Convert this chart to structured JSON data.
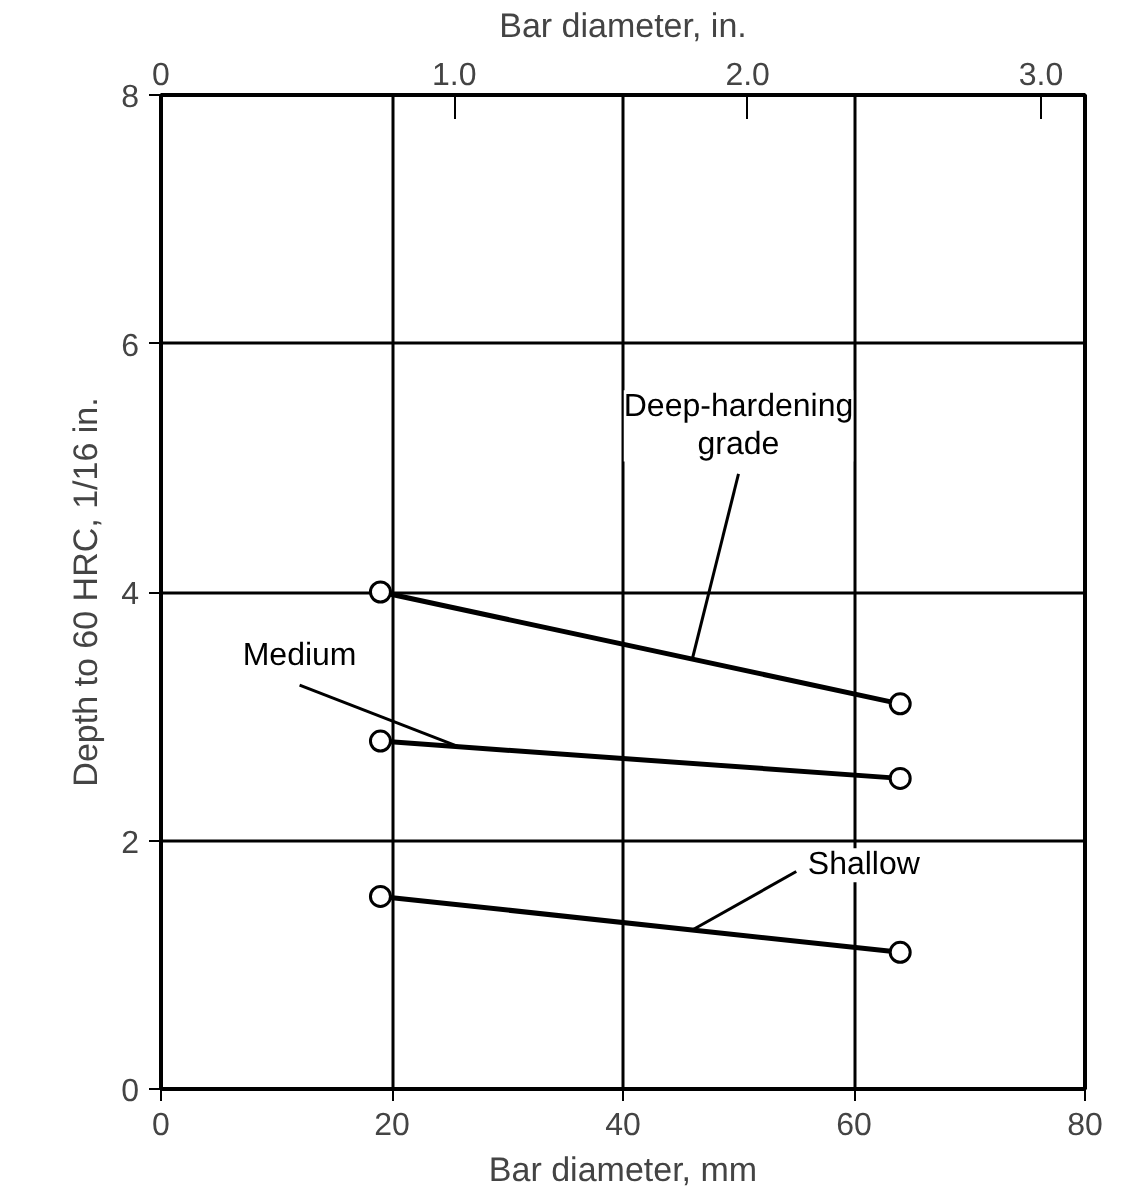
{
  "chart_data": {
    "type": "line",
    "xlabel": "Bar diameter, mm",
    "ylabel": "Depth to 60 HRC, 1/16 in.",
    "x2label": "Bar diameter, in.",
    "xlim": [
      0,
      80
    ],
    "xticks": [
      0,
      20,
      40,
      60,
      80
    ],
    "ylim": [
      0,
      8
    ],
    "yticks": [
      0,
      2,
      4,
      6,
      8
    ],
    "x2lim": [
      0,
      3.15
    ],
    "x2ticks": [
      0,
      {
        "value": 1,
        "label": "1.0"
      },
      {
        "value": 2,
        "label": "2.0"
      },
      {
        "value": 3,
        "label": "3.0"
      }
    ],
    "x": [
      19,
      64
    ],
    "grid": true,
    "marker": "circle",
    "line_style": "solid",
    "series": [
      {
        "name": "Deep-hardening grade",
        "color": "#000000",
        "values": [
          4.0,
          3.1
        ]
      },
      {
        "name": "Medium",
        "color": "#000000",
        "values": [
          2.8,
          2.5
        ]
      },
      {
        "name": "Shallow",
        "color": "#000000",
        "values": [
          1.55,
          1.1
        ]
      }
    ]
  }
}
